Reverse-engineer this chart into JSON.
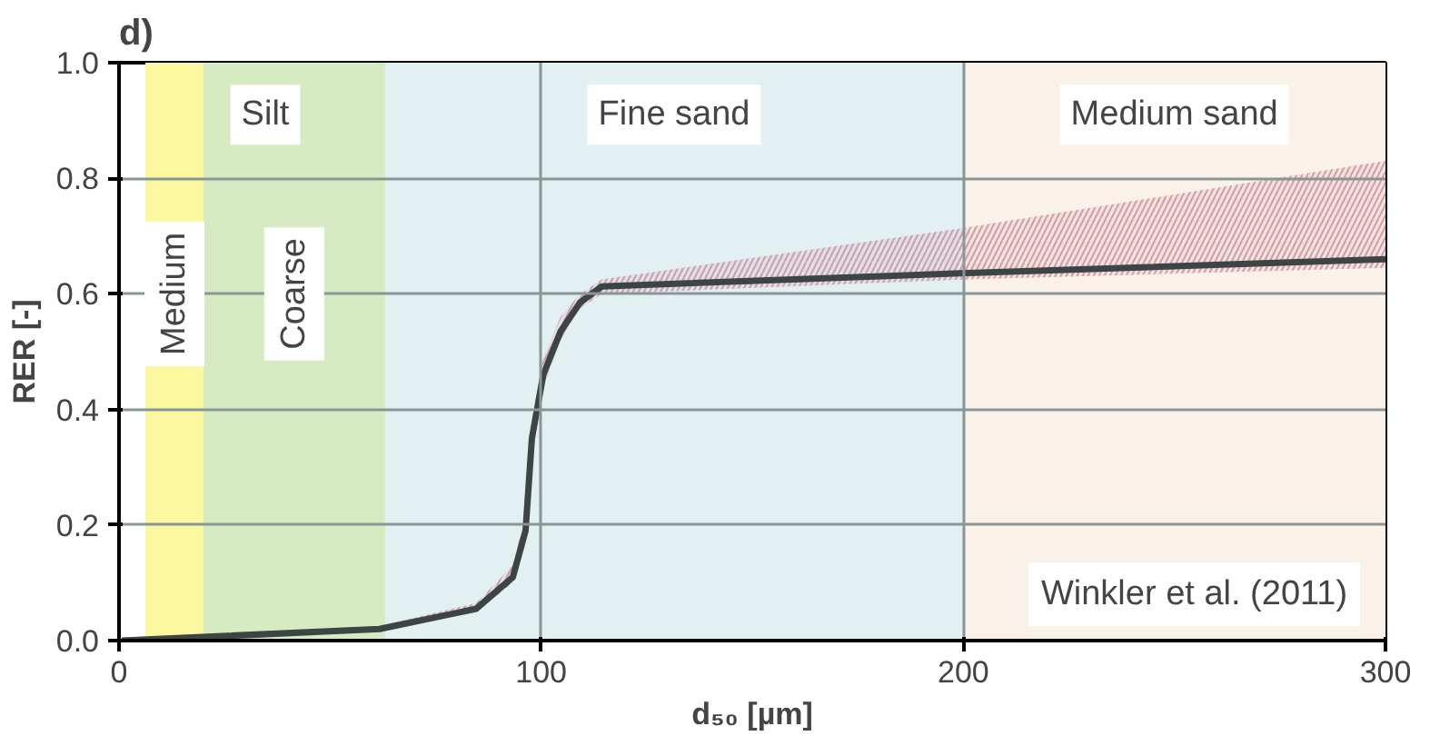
{
  "chart_data": {
    "type": "line",
    "title": "d)",
    "xlabel": "d₅₀ [µm]",
    "ylabel": "RER [-]",
    "annotations": [
      "Winkler et al. (2011)"
    ],
    "x": [
      0.7,
      61.7,
      84.6,
      93.3,
      96.3,
      97.8,
      100.5,
      104.6,
      109.2,
      114.4,
      201,
      300
    ],
    "series": [
      {
        "color": "#3d4444",
        "values": [
          0.0,
          0.02,
          0.055,
          0.11,
          0.19,
          0.35,
          0.46,
          0.535,
          0.585,
          0.613,
          0.636,
          0.66
        ],
        "lower": [
          0.0,
          0.015,
          0.05,
          0.1,
          0.17,
          0.33,
          0.44,
          0.52,
          0.575,
          0.6,
          0.625,
          0.645
        ],
        "upper": [
          0.005,
          0.025,
          0.065,
          0.13,
          0.22,
          0.38,
          0.49,
          0.56,
          0.6,
          0.625,
          0.715,
          0.83
        ]
      }
    ],
    "bands": [
      {
        "axis": "x",
        "from": 6.3,
        "to": 63,
        "label": "Silt",
        "color": "#d6ebc1"
      },
      {
        "axis": "x",
        "from": 6.3,
        "to": 20,
        "label": "Medium",
        "color": "#fbf8a0"
      },
      {
        "axis": "x",
        "from": 20,
        "to": 63,
        "label": "Coarse",
        "color": "#d6ebc1"
      },
      {
        "axis": "x",
        "from": 63,
        "to": 200,
        "label": "Fine sand",
        "color": "#e3f0f2"
      },
      {
        "axis": "x",
        "from": 200,
        "to": 300,
        "label": "Medium sand",
        "color": "#faf2e8"
      }
    ],
    "xlim": [
      0,
      300
    ],
    "xticks": [
      0,
      100,
      200,
      300
    ],
    "ylim": [
      0,
      1
    ],
    "yticks": [
      {
        "value": 0,
        "label": "0.0"
      },
      {
        "value": 0.2,
        "label": "0.2"
      },
      {
        "value": 0.4,
        "label": "0.4"
      },
      {
        "value": 0.6,
        "label": "0.6"
      },
      {
        "value": 0.8,
        "label": "0.8"
      },
      {
        "value": 1,
        "label": "1.0"
      }
    ],
    "grid": true
  }
}
